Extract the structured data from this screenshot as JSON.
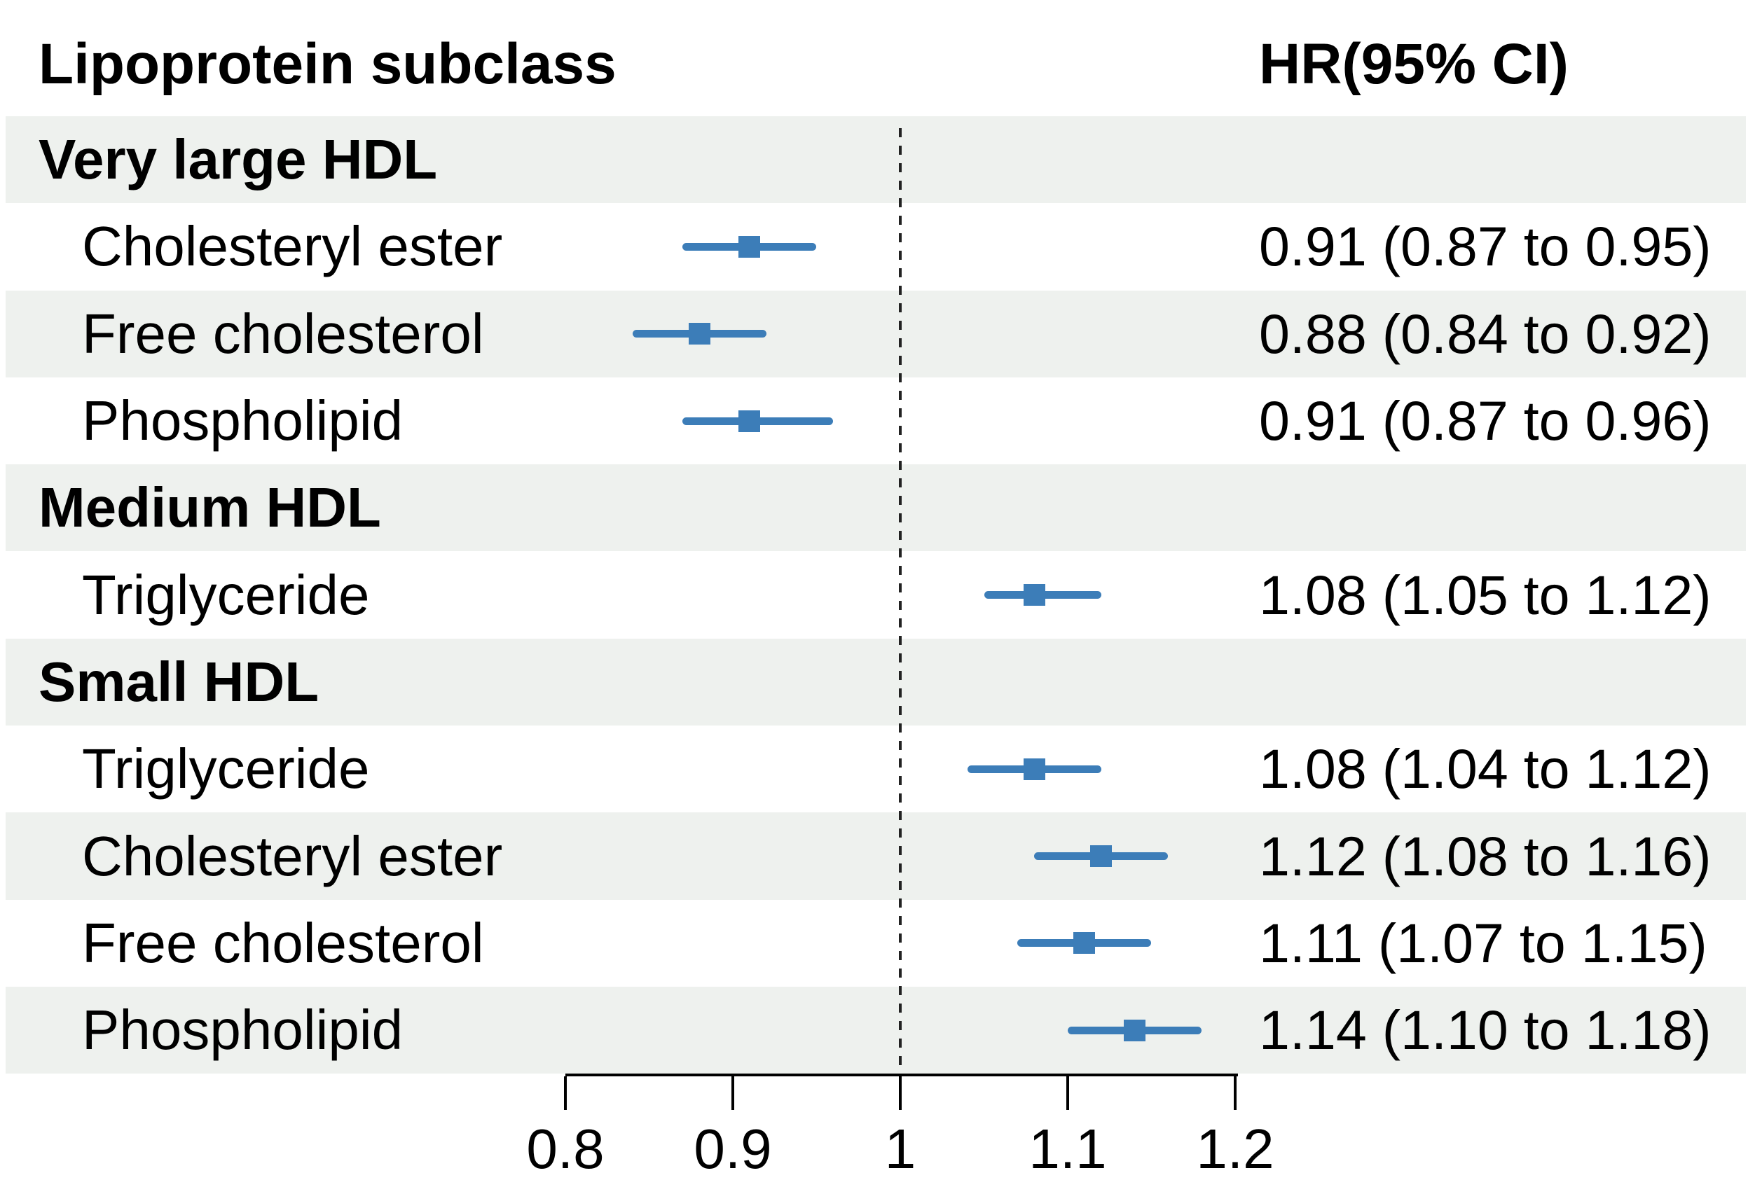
{
  "header": {
    "left": "Lipoprotein subclass",
    "right": "HR(95% CI)"
  },
  "colors": {
    "stripe": "#eef1ee",
    "marker_blue": "#3c7db8",
    "axis_black": "#000000",
    "reference_dash": "#222222",
    "background": "#ffffff"
  },
  "chart_data": {
    "type": "forest",
    "x_axis": {
      "min": 0.8,
      "max": 1.2,
      "ticks": [
        0.8,
        0.9,
        1,
        1.1,
        1.2
      ],
      "tick_labels": [
        "0.8",
        "0.9",
        "1",
        "1.1",
        "1.2"
      ],
      "reference_line": 1
    },
    "columns": {
      "label_header": "Lipoprotein subclass",
      "estimate_header": "HR(95% CI)"
    },
    "rows": [
      {
        "label": "Very large HDL",
        "group": true,
        "shaded": true
      },
      {
        "label": "Cholesteryl ester",
        "group": false,
        "shaded": false,
        "hr": 0.91,
        "lo": 0.87,
        "hi": 0.95,
        "text": "0.91 (0.87 to 0.95)"
      },
      {
        "label": "Free cholesterol",
        "group": false,
        "shaded": true,
        "hr": 0.88,
        "lo": 0.84,
        "hi": 0.92,
        "text": "0.88 (0.84 to 0.92)"
      },
      {
        "label": "Phospholipid",
        "group": false,
        "shaded": false,
        "hr": 0.91,
        "lo": 0.87,
        "hi": 0.96,
        "text": "0.91 (0.87 to 0.96)"
      },
      {
        "label": "Medium HDL",
        "group": true,
        "shaded": true
      },
      {
        "label": "Triglyceride",
        "group": false,
        "shaded": false,
        "hr": 1.08,
        "lo": 1.05,
        "hi": 1.12,
        "text": "1.08 (1.05 to 1.12)"
      },
      {
        "label": "Small HDL",
        "group": true,
        "shaded": true
      },
      {
        "label": "Triglyceride",
        "group": false,
        "shaded": false,
        "hr": 1.08,
        "lo": 1.04,
        "hi": 1.12,
        "text": "1.08 (1.04 to 1.12)"
      },
      {
        "label": "Cholesteryl ester",
        "group": false,
        "shaded": true,
        "hr": 1.12,
        "lo": 1.08,
        "hi": 1.16,
        "text": "1.12 (1.08 to 1.16)"
      },
      {
        "label": "Free cholesterol",
        "group": false,
        "shaded": false,
        "hr": 1.11,
        "lo": 1.07,
        "hi": 1.15,
        "text": "1.11 (1.07 to 1.15)"
      },
      {
        "label": "Phospholipid",
        "group": false,
        "shaded": true,
        "hr": 1.14,
        "lo": 1.1,
        "hi": 1.18,
        "text": "1.14 (1.10 to 1.18)"
      }
    ]
  }
}
